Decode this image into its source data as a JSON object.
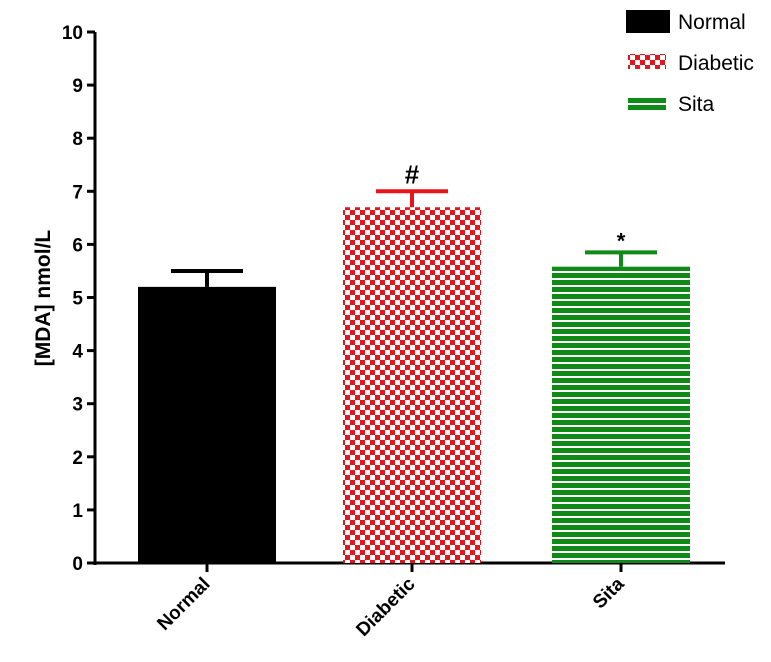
{
  "chart_data": {
    "type": "bar",
    "categories": [
      "Normal",
      "Diabetic",
      "Sita"
    ],
    "values": [
      5.2,
      6.7,
      5.58
    ],
    "errors": [
      0.3,
      0.3,
      0.27
    ],
    "annotations": [
      "",
      "#",
      "*"
    ],
    "ylabel": "[MDA] nmol/L",
    "xlabel": "",
    "title": "",
    "ylim": [
      0,
      10
    ],
    "yticks": [
      0,
      1,
      2,
      3,
      4,
      5,
      6,
      7,
      8,
      9,
      10
    ],
    "grid": false,
    "legend": {
      "placement": "top-right",
      "entries": [
        "Normal",
        "Diabetic",
        "Sita"
      ]
    },
    "colors": {
      "normal": "#000000",
      "diabetic": "#e8141c",
      "sita": "#0f8a16"
    }
  }
}
